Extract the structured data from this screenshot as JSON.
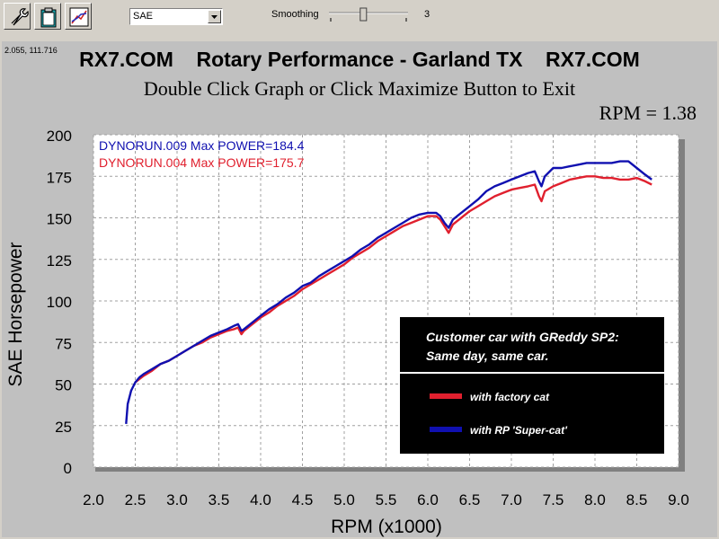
{
  "toolbar": {
    "icons": [
      "wrench-icon",
      "clipboard-icon",
      "graph-icon"
    ],
    "units_select_value": "SAE",
    "smoothing_label": "Smoothing",
    "smoothing_value": "3",
    "smoothing_level_fraction": 0.4
  },
  "graph_header": {
    "cursor_readout": "2.055, 111.716",
    "title": "RX7.COM    Rotary Performance - Garland TX    RX7.COM",
    "subtitle": "Double Click Graph or Click Maximize Button to Exit",
    "rpm_readout": "RPM = 1.38"
  },
  "chart_data": {
    "type": "line",
    "xlabel": "RPM (x1000)",
    "ylabel": "SAE Horsepower",
    "xlim": [
      2.0,
      9.0
    ],
    "ylim": [
      0,
      200
    ],
    "x_ticks": [
      "2.0",
      "2.5",
      "3.0",
      "3.5",
      "4.0",
      "4.5",
      "5.0",
      "5.5",
      "6.0",
      "6.5",
      "7.0",
      "7.5",
      "8.0",
      "8.5",
      "9.0"
    ],
    "y_ticks": [
      "0",
      "25",
      "50",
      "75",
      "100",
      "125",
      "150",
      "175",
      "200"
    ],
    "grid": true,
    "legend_placement": "top-left",
    "series": [
      {
        "name": "DYNORUN.009  Max POWER=184.4",
        "color": "#1010b0",
        "points": [
          [
            2.39,
            26
          ],
          [
            2.41,
            38
          ],
          [
            2.45,
            46
          ],
          [
            2.5,
            51
          ],
          [
            2.55,
            54
          ],
          [
            2.6,
            56
          ],
          [
            2.7,
            59
          ],
          [
            2.8,
            62
          ],
          [
            2.9,
            64
          ],
          [
            3.0,
            67
          ],
          [
            3.1,
            70
          ],
          [
            3.2,
            73
          ],
          [
            3.3,
            76
          ],
          [
            3.4,
            79
          ],
          [
            3.5,
            81
          ],
          [
            3.6,
            83
          ],
          [
            3.68,
            85
          ],
          [
            3.73,
            86
          ],
          [
            3.77,
            82
          ],
          [
            3.8,
            83
          ],
          [
            3.9,
            87
          ],
          [
            4.0,
            91
          ],
          [
            4.1,
            95
          ],
          [
            4.2,
            98
          ],
          [
            4.3,
            102
          ],
          [
            4.4,
            105
          ],
          [
            4.5,
            109
          ],
          [
            4.6,
            111
          ],
          [
            4.7,
            115
          ],
          [
            4.8,
            118
          ],
          [
            4.9,
            121
          ],
          [
            5.0,
            124
          ],
          [
            5.1,
            127
          ],
          [
            5.2,
            131
          ],
          [
            5.3,
            134
          ],
          [
            5.4,
            138
          ],
          [
            5.5,
            141
          ],
          [
            5.6,
            144
          ],
          [
            5.7,
            147
          ],
          [
            5.8,
            150
          ],
          [
            5.9,
            152
          ],
          [
            6.0,
            153
          ],
          [
            6.1,
            153
          ],
          [
            6.15,
            151
          ],
          [
            6.2,
            147
          ],
          [
            6.25,
            144
          ],
          [
            6.3,
            149
          ],
          [
            6.4,
            153
          ],
          [
            6.5,
            157
          ],
          [
            6.6,
            161
          ],
          [
            6.7,
            166
          ],
          [
            6.8,
            169
          ],
          [
            6.9,
            171
          ],
          [
            7.0,
            173
          ],
          [
            7.1,
            175
          ],
          [
            7.2,
            177
          ],
          [
            7.28,
            178
          ],
          [
            7.33,
            172
          ],
          [
            7.36,
            169
          ],
          [
            7.4,
            175
          ],
          [
            7.5,
            180
          ],
          [
            7.6,
            180
          ],
          [
            7.7,
            181
          ],
          [
            7.8,
            182
          ],
          [
            7.9,
            183
          ],
          [
            8.0,
            183
          ],
          [
            8.1,
            183
          ],
          [
            8.2,
            183
          ],
          [
            8.3,
            184
          ],
          [
            8.4,
            184
          ],
          [
            8.5,
            180
          ],
          [
            8.6,
            176
          ],
          [
            8.68,
            173
          ]
        ]
      },
      {
        "name": "DYNORUN.004  Max POWER=175.7",
        "color": "#e0202e",
        "points": [
          [
            2.5,
            51
          ],
          [
            2.6,
            55
          ],
          [
            2.7,
            58
          ],
          [
            2.8,
            62
          ],
          [
            2.9,
            64
          ],
          [
            3.0,
            67
          ],
          [
            3.1,
            70
          ],
          [
            3.2,
            73
          ],
          [
            3.3,
            75
          ],
          [
            3.4,
            78
          ],
          [
            3.5,
            80
          ],
          [
            3.6,
            82
          ],
          [
            3.68,
            83
          ],
          [
            3.73,
            84
          ],
          [
            3.77,
            80
          ],
          [
            3.8,
            82
          ],
          [
            3.9,
            86
          ],
          [
            4.0,
            90
          ],
          [
            4.1,
            93
          ],
          [
            4.2,
            97
          ],
          [
            4.3,
            100
          ],
          [
            4.4,
            103
          ],
          [
            4.5,
            107
          ],
          [
            4.6,
            110
          ],
          [
            4.7,
            113
          ],
          [
            4.8,
            116
          ],
          [
            4.9,
            119
          ],
          [
            5.0,
            122
          ],
          [
            5.1,
            126
          ],
          [
            5.2,
            129
          ],
          [
            5.3,
            132
          ],
          [
            5.4,
            136
          ],
          [
            5.5,
            139
          ],
          [
            5.6,
            142
          ],
          [
            5.7,
            145
          ],
          [
            5.8,
            147
          ],
          [
            5.9,
            149
          ],
          [
            6.0,
            151
          ],
          [
            6.1,
            151
          ],
          [
            6.15,
            149
          ],
          [
            6.2,
            145
          ],
          [
            6.25,
            141
          ],
          [
            6.3,
            146
          ],
          [
            6.4,
            150
          ],
          [
            6.5,
            154
          ],
          [
            6.6,
            157
          ],
          [
            6.7,
            160
          ],
          [
            6.8,
            163
          ],
          [
            6.9,
            165
          ],
          [
            7.0,
            167
          ],
          [
            7.1,
            168
          ],
          [
            7.2,
            169
          ],
          [
            7.28,
            170
          ],
          [
            7.33,
            163
          ],
          [
            7.36,
            160
          ],
          [
            7.4,
            166
          ],
          [
            7.5,
            169
          ],
          [
            7.6,
            171
          ],
          [
            7.7,
            173
          ],
          [
            7.8,
            174
          ],
          [
            7.9,
            175
          ],
          [
            8.0,
            175
          ],
          [
            8.1,
            174
          ],
          [
            8.2,
            174
          ],
          [
            8.3,
            173
          ],
          [
            8.4,
            173
          ],
          [
            8.5,
            174
          ],
          [
            8.6,
            172
          ],
          [
            8.68,
            170
          ]
        ]
      }
    ],
    "annotation": {
      "headline_lines": [
        "Customer car with GReddy SP2:",
        "Same day, same car."
      ],
      "legend_items": [
        {
          "label": "with factory cat",
          "color": "#e0202e"
        },
        {
          "label": "with RP 'Super-cat'",
          "color": "#1010b0"
        }
      ]
    }
  }
}
